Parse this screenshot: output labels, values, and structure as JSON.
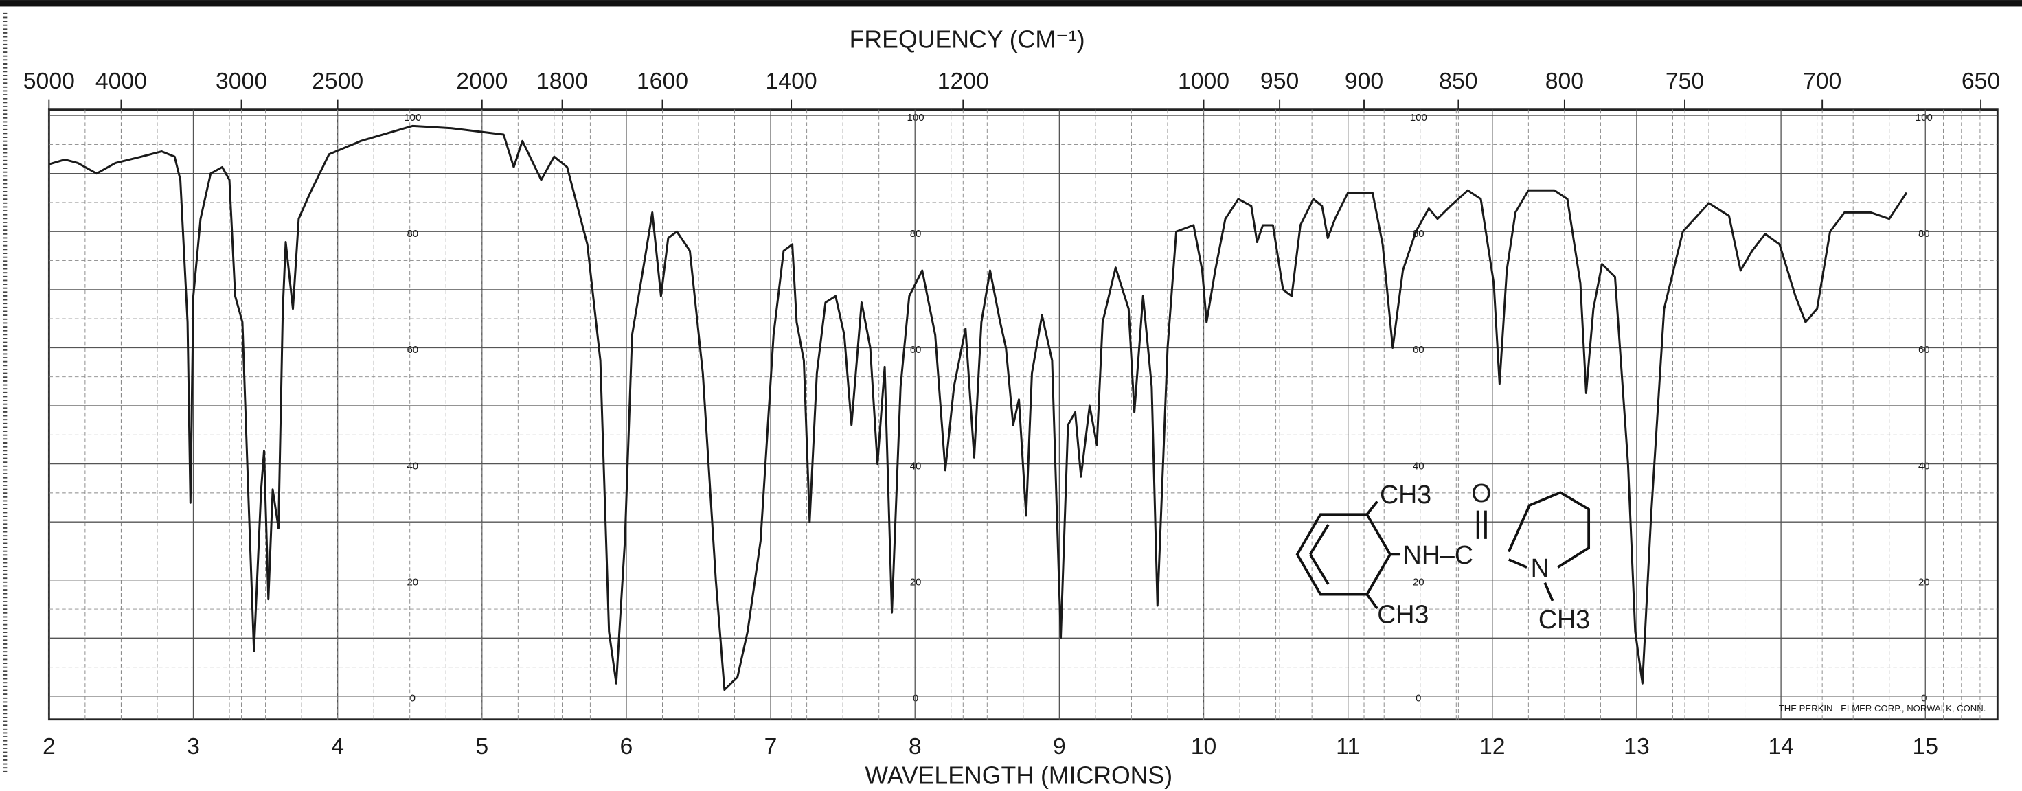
{
  "chart_data": {
    "type": "line",
    "title": "FREQUENCY (CM⁻¹)",
    "xlabel": "WAVELENGTH (MICRONS)",
    "xlim": [
      2,
      15.5
    ],
    "xticks": [
      2,
      3,
      4,
      5,
      6,
      7,
      8,
      9,
      10,
      11,
      12,
      13,
      14,
      15
    ],
    "ylim": [
      -4,
      101
    ],
    "yticks": [
      0,
      20,
      40,
      60,
      80,
      100
    ],
    "top_axis_ticks": [
      5000,
      4000,
      3000,
      2500,
      2000,
      1800,
      1600,
      1400,
      1200,
      1000,
      950,
      900,
      850,
      800,
      750,
      700,
      650
    ],
    "grid": true,
    "color": "#1a1a1a",
    "x": [
      2.0,
      2.11,
      2.2,
      2.33,
      2.46,
      2.64,
      2.78,
      2.87,
      2.91,
      2.96,
      2.98,
      3.0,
      3.05,
      3.12,
      3.2,
      3.25,
      3.29,
      3.34,
      3.38,
      3.42,
      3.47,
      3.49,
      3.52,
      3.55,
      3.59,
      3.62,
      3.64,
      3.69,
      3.73,
      3.81,
      3.94,
      4.16,
      4.52,
      4.79,
      5.15,
      5.22,
      5.28,
      5.41,
      5.5,
      5.59,
      5.73,
      5.82,
      5.88,
      5.93,
      5.99,
      6.04,
      6.13,
      6.18,
      6.24,
      6.29,
      6.35,
      6.44,
      6.53,
      6.62,
      6.68,
      6.77,
      6.84,
      6.93,
      7.02,
      7.09,
      7.15,
      7.18,
      7.23,
      7.27,
      7.32,
      7.38,
      7.45,
      7.51,
      7.56,
      7.63,
      7.69,
      7.74,
      7.79,
      7.84,
      7.9,
      7.96,
      8.05,
      8.14,
      8.21,
      8.27,
      8.35,
      8.41,
      8.46,
      8.52,
      8.59,
      8.63,
      8.68,
      8.72,
      8.77,
      8.81,
      8.88,
      8.95,
      9.01,
      9.06,
      9.11,
      9.15,
      9.21,
      9.26,
      9.3,
      9.39,
      9.48,
      9.52,
      9.58,
      9.64,
      9.68,
      9.75,
      9.81,
      9.93,
      9.99,
      10.02,
      10.08,
      10.15,
      10.24,
      10.33,
      10.37,
      10.41,
      10.48,
      10.55,
      10.61,
      10.67,
      10.76,
      10.82,
      10.86,
      10.91,
      11.0,
      11.17,
      11.24,
      11.31,
      11.38,
      11.47,
      11.56,
      11.62,
      11.71,
      11.83,
      11.92,
      12.01,
      12.05,
      12.1,
      12.16,
      12.25,
      12.43,
      12.52,
      12.61,
      12.65,
      12.7,
      12.76,
      12.85,
      12.94,
      12.99,
      13.04,
      13.1,
      13.19,
      13.32,
      13.5,
      13.64,
      13.72,
      13.8,
      13.89,
      13.99,
      14.1,
      14.17,
      14.25,
      14.34,
      14.44,
      14.62,
      14.75,
      14.87
    ],
    "values": [
      91.6,
      92.4,
      91.8,
      90.0,
      91.8,
      92.9,
      93.8,
      92.9,
      88.9,
      64.4,
      33.3,
      68.9,
      82.2,
      90.0,
      91.1,
      88.9,
      68.9,
      64.4,
      35.6,
      7.8,
      35.6,
      42.2,
      16.7,
      35.6,
      28.9,
      66.7,
      78.2,
      66.7,
      82.2,
      86.7,
      93.3,
      95.6,
      98.2,
      97.8,
      96.7,
      91.1,
      95.6,
      88.9,
      92.9,
      91.1,
      77.8,
      57.8,
      11.1,
      2.2,
      26.7,
      62.2,
      75.6,
      83.3,
      68.9,
      78.9,
      80.0,
      76.7,
      55.6,
      20.0,
      1.1,
      3.3,
      11.1,
      26.7,
      62.2,
      76.7,
      77.8,
      64.4,
      57.8,
      30.0,
      55.6,
      67.8,
      68.9,
      62.2,
      46.7,
      67.8,
      60.0,
      40.0,
      56.7,
      14.4,
      53.3,
      68.9,
      73.3,
      62.2,
      38.9,
      53.3,
      63.3,
      41.1,
      64.4,
      73.3,
      64.4,
      60.0,
      46.7,
      51.1,
      31.1,
      55.6,
      65.6,
      57.8,
      10.0,
      46.7,
      48.9,
      37.8,
      50.0,
      43.3,
      64.4,
      73.8,
      66.7,
      48.9,
      68.9,
      53.3,
      15.6,
      60.0,
      80.0,
      81.1,
      73.3,
      64.4,
      73.3,
      82.2,
      85.6,
      84.4,
      78.2,
      81.1,
      81.1,
      70.0,
      68.9,
      81.1,
      85.6,
      84.4,
      78.9,
      82.2,
      86.7,
      86.7,
      77.8,
      60.0,
      73.3,
      80.0,
      84.0,
      82.2,
      84.4,
      87.1,
      85.6,
      71.1,
      53.8,
      73.3,
      83.3,
      87.1,
      87.1,
      85.6,
      71.1,
      52.2,
      66.7,
      74.4,
      72.2,
      40.0,
      11.1,
      2.2,
      31.1,
      66.7,
      80.0,
      84.9,
      82.7,
      73.3,
      76.7,
      79.6,
      77.8,
      68.9,
      64.4,
      66.7,
      80.0,
      83.3,
      83.3,
      82.2,
      86.7
    ],
    "annotations": [
      "CH3",
      "O",
      "NH–C",
      "N",
      "CH3",
      "CH3",
      "THE PERKIN - ELMER CORP., NORWALK, CONN."
    ]
  }
}
